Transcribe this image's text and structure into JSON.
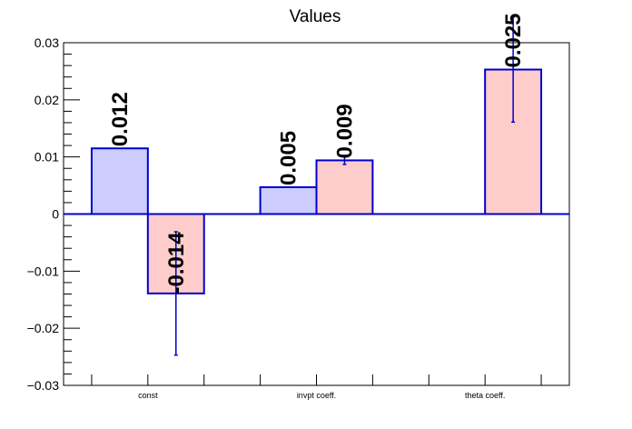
{
  "chart_data": {
    "type": "bar",
    "title": "Values",
    "xlabel": "",
    "ylabel": "",
    "ylim": [
      -0.03,
      0.03
    ],
    "yticks": [
      0.03,
      0.02,
      0.01,
      0,
      -0.01,
      -0.02,
      -0.03
    ],
    "ytick_labels": [
      "0.03",
      "0.02",
      "0.01",
      "0",
      "−0.01",
      "−0.02",
      "−0.03"
    ],
    "categories": [
      "const",
      "invpt coeff.",
      "theta coeff."
    ],
    "series": [
      {
        "values": [
          0.0115,
          0.0047,
          null
        ],
        "labels": [
          "0.012",
          "0.005",
          ""
        ],
        "errors": [
          null,
          null,
          null
        ],
        "fill": "#ccccff",
        "stroke": "#0000cc"
      },
      {
        "values": [
          -0.0139,
          0.0094,
          0.0253
        ],
        "labels": [
          "-0.014",
          "0.009",
          "0.025"
        ],
        "errors": [
          0.0108,
          0.0007,
          0.0092
        ],
        "fill": "#ffcccc",
        "stroke": "#0000cc"
      }
    ],
    "grid": false,
    "legend": "none"
  }
}
